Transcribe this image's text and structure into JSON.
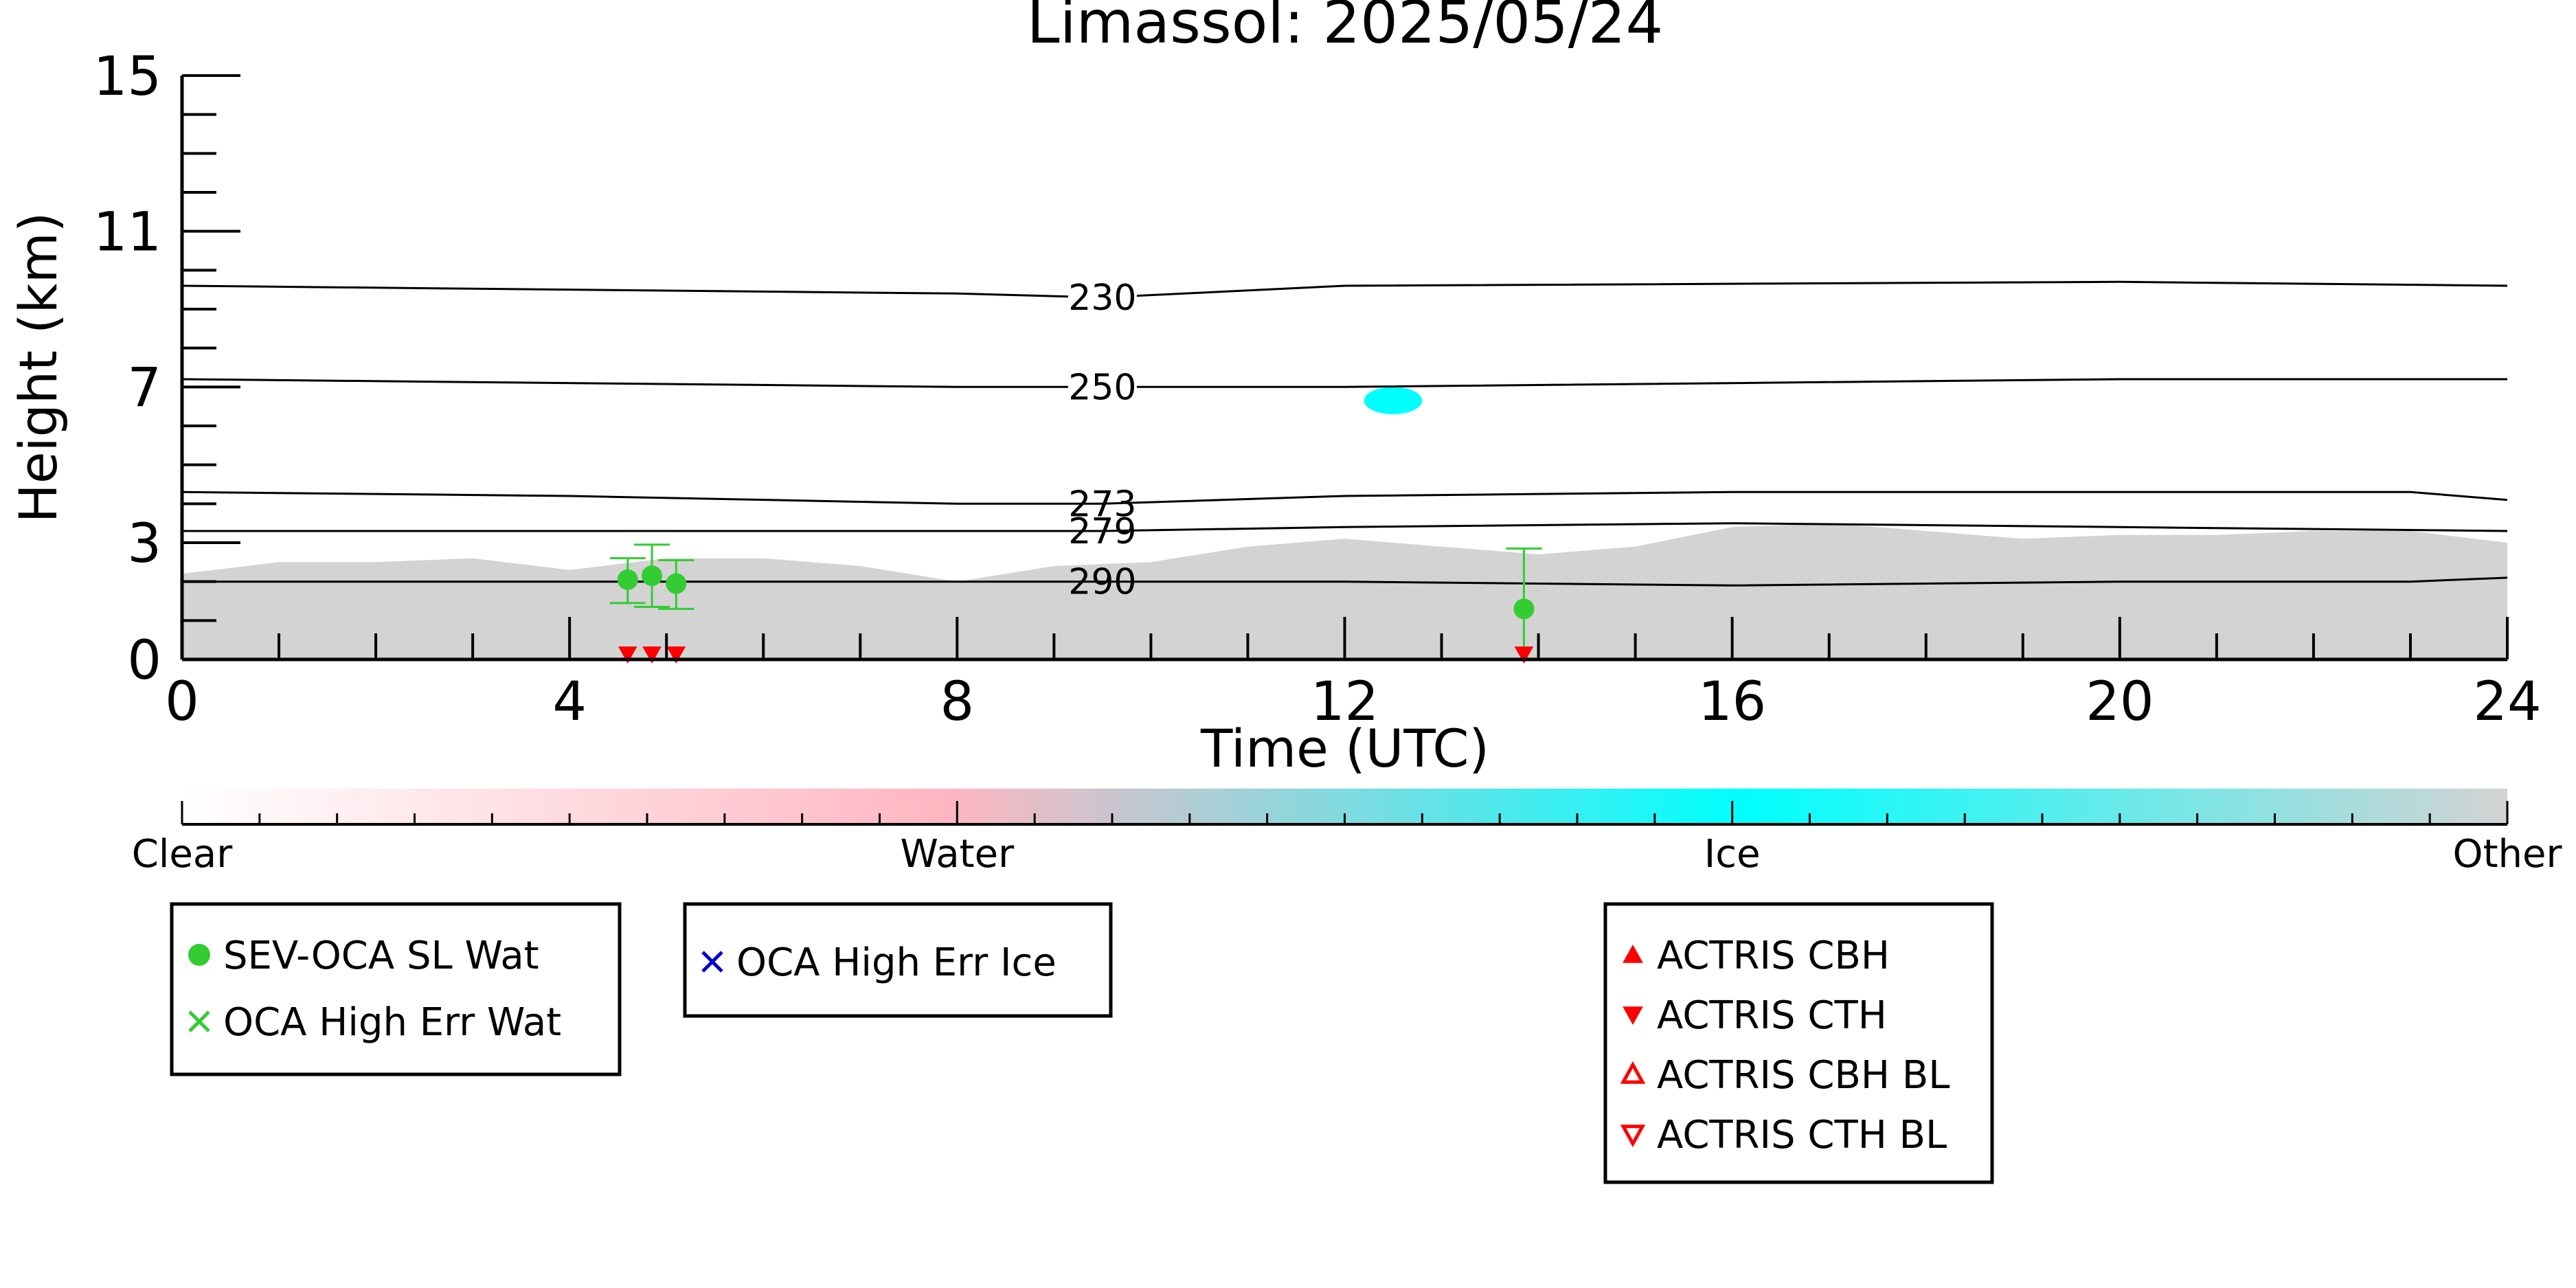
{
  "chart_data": {
    "type": "scatter",
    "title": "Limassol: 2025/05/24",
    "xlabel": "Time (UTC)",
    "ylabel": "Height (km)",
    "xlim": [
      0,
      24
    ],
    "ylim": [
      0,
      15
    ],
    "x_ticks": [
      0,
      4,
      8,
      12,
      16,
      20,
      24
    ],
    "y_ticks": [
      0,
      3,
      7,
      11,
      15
    ],
    "grid": false,
    "background_fill": {
      "category": "Other",
      "color": "#d3d3d3",
      "top_km": [
        [
          0,
          2.2
        ],
        [
          1,
          2.5
        ],
        [
          2,
          2.5
        ],
        [
          3,
          2.6
        ],
        [
          4,
          2.3
        ],
        [
          5,
          2.6
        ],
        [
          6,
          2.6
        ],
        [
          7,
          2.4
        ],
        [
          8,
          2.0
        ],
        [
          9,
          2.4
        ],
        [
          10,
          2.5
        ],
        [
          11,
          2.9
        ],
        [
          12,
          3.1
        ],
        [
          13,
          2.9
        ],
        [
          14,
          2.7
        ],
        [
          15,
          2.9
        ],
        [
          16,
          3.4
        ],
        [
          17,
          3.5
        ],
        [
          18,
          3.3
        ],
        [
          19,
          3.1
        ],
        [
          20,
          3.2
        ],
        [
          21,
          3.2
        ],
        [
          22,
          3.3
        ],
        [
          23,
          3.3
        ],
        [
          24,
          3.0
        ]
      ]
    },
    "ice_cloud": {
      "category": "Ice",
      "color": "#00ffff",
      "x_range": [
        12.2,
        12.8
      ],
      "y_range": [
        6.3,
        7.0
      ]
    },
    "temperature_contours": [
      {
        "label": "230",
        "points": [
          [
            0,
            9.6
          ],
          [
            8,
            9.4
          ],
          [
            9.5,
            9.3
          ],
          [
            12,
            9.6
          ],
          [
            20,
            9.7
          ],
          [
            24,
            9.6
          ]
        ]
      },
      {
        "label": "250",
        "points": [
          [
            0,
            7.2
          ],
          [
            8,
            7.0
          ],
          [
            9.5,
            7.0
          ],
          [
            12,
            7.0
          ],
          [
            20,
            7.2
          ],
          [
            24,
            7.2
          ]
        ]
      },
      {
        "label": "273",
        "points": [
          [
            0,
            4.3
          ],
          [
            4,
            4.2
          ],
          [
            8,
            4.0
          ],
          [
            9.5,
            4.0
          ],
          [
            12,
            4.2
          ],
          [
            16,
            4.3
          ],
          [
            20,
            4.3
          ],
          [
            23,
            4.3
          ],
          [
            24,
            4.1
          ]
        ]
      },
      {
        "label": "279",
        "points": [
          [
            0,
            3.3
          ],
          [
            4,
            3.3
          ],
          [
            8,
            3.3
          ],
          [
            9.5,
            3.3
          ],
          [
            12,
            3.4
          ],
          [
            16,
            3.5
          ],
          [
            20,
            3.4
          ],
          [
            24,
            3.3
          ]
        ]
      },
      {
        "label": "290",
        "points": [
          [
            0,
            2.0
          ],
          [
            4,
            2.0
          ],
          [
            8,
            2.0
          ],
          [
            9.5,
            2.0
          ],
          [
            12,
            2.0
          ],
          [
            16,
            1.9
          ],
          [
            20,
            2.0
          ],
          [
            23,
            2.0
          ],
          [
            24,
            2.1
          ]
        ]
      }
    ],
    "contour_label_x": 9.5,
    "series": [
      {
        "name": "SEV-OCA SL Wat",
        "marker": "circle",
        "color": "#33cc33",
        "points": [
          {
            "x": 4.6,
            "y": 2.05,
            "ylow": 1.45,
            "yhigh": 2.6
          },
          {
            "x": 4.85,
            "y": 2.15,
            "ylow": 1.35,
            "yhigh": 2.95
          },
          {
            "x": 5.1,
            "y": 1.95,
            "ylow": 1.3,
            "yhigh": 2.55
          },
          {
            "x": 13.85,
            "y": 1.3,
            "ylow": 0.0,
            "yhigh": 2.85
          }
        ]
      },
      {
        "name": "OCA High Err Wat",
        "marker": "x",
        "color": "#33cc33",
        "points": []
      },
      {
        "name": "OCA High Err Ice",
        "marker": "x",
        "color": "#0000cc",
        "points": []
      },
      {
        "name": "ACTRIS CBH",
        "marker": "triangle-up",
        "color": "#ff0000",
        "points": []
      },
      {
        "name": "ACTRIS CTH",
        "marker": "triangle-down",
        "color": "#ff0000",
        "points": [
          {
            "x": 4.6,
            "y": 0.0
          },
          {
            "x": 4.85,
            "y": 0.0
          },
          {
            "x": 5.1,
            "y": 0.0
          },
          {
            "x": 13.85,
            "y": 0.0
          }
        ]
      },
      {
        "name": "ACTRIS CBH BL",
        "marker": "triangle-up-open",
        "color": "#ff0000",
        "points": []
      },
      {
        "name": "ACTRIS CTH BL",
        "marker": "triangle-down-open",
        "color": "#ff0000",
        "points": []
      }
    ],
    "colorbar": {
      "labels": [
        "Clear",
        "Water",
        "Ice",
        "Other"
      ],
      "stops": [
        {
          "pos": 0.0,
          "color": "#ffffff"
        },
        {
          "pos": 0.33,
          "color": "#ffb6c1"
        },
        {
          "pos": 0.67,
          "color": "#00ffff"
        },
        {
          "pos": 1.0,
          "color": "#d3d3d3"
        }
      ]
    },
    "legend": {
      "placement": "below",
      "boxes": [
        [
          "SEV-OCA SL Wat",
          "OCA High Err Wat"
        ],
        [
          "OCA High Err Ice"
        ],
        [
          "ACTRIS CBH",
          "ACTRIS CTH",
          "ACTRIS CBH BL",
          "ACTRIS CTH BL"
        ]
      ]
    }
  }
}
